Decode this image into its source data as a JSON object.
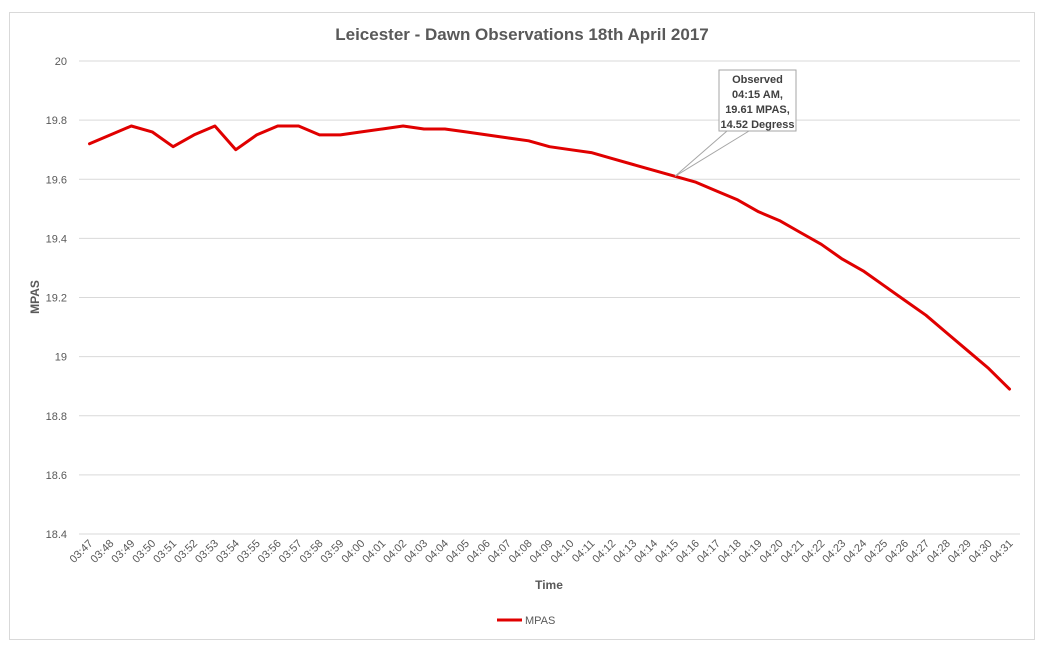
{
  "chart_data": {
    "type": "line",
    "title": "Leicester - Dawn Observations 18th April 2017",
    "xlabel": "Time",
    "ylabel": "MPAS",
    "ylim": [
      18.4,
      20
    ],
    "yticks": [
      "18.4",
      "18.6",
      "18.8",
      "19",
      "19.2",
      "19.4",
      "19.6",
      "19.8",
      "20"
    ],
    "grid": true,
    "legend_position": "bottom",
    "categories": [
      "03:47",
      "03:48",
      "03:49",
      "03:50",
      "03:51",
      "03:52",
      "03:53",
      "03:54",
      "03:55",
      "03:56",
      "03:57",
      "03:58",
      "03:59",
      "04:00",
      "04:01",
      "04:02",
      "04:03",
      "04:04",
      "04:05",
      "04:06",
      "04:07",
      "04:08",
      "04:09",
      "04:10",
      "04:11",
      "04:12",
      "04:13",
      "04:14",
      "04:15",
      "04:16",
      "04:17",
      "04:18",
      "04:19",
      "04:20",
      "04:21",
      "04:22",
      "04:23",
      "04:24",
      "04:25",
      "04:26",
      "04:27",
      "04:28",
      "04:29",
      "04:30",
      "04:31"
    ],
    "series": [
      {
        "name": "MPAS",
        "color": "#e00000",
        "values": [
          19.72,
          19.75,
          19.78,
          19.76,
          19.71,
          19.75,
          19.78,
          19.7,
          19.75,
          19.78,
          19.78,
          19.75,
          19.75,
          19.76,
          19.77,
          19.78,
          19.77,
          19.77,
          19.76,
          19.75,
          19.74,
          19.73,
          19.71,
          19.7,
          19.69,
          19.67,
          19.65,
          19.63,
          19.61,
          19.59,
          19.56,
          19.53,
          19.49,
          19.46,
          19.42,
          19.38,
          19.33,
          19.29,
          19.24,
          19.19,
          19.14,
          19.08,
          19.02,
          18.96,
          18.89
        ]
      }
    ],
    "annotation": {
      "index": 28,
      "lines": [
        "Observed",
        "04:15 AM,",
        "19.61 MPAS,",
        "14.52 Degress"
      ]
    }
  }
}
